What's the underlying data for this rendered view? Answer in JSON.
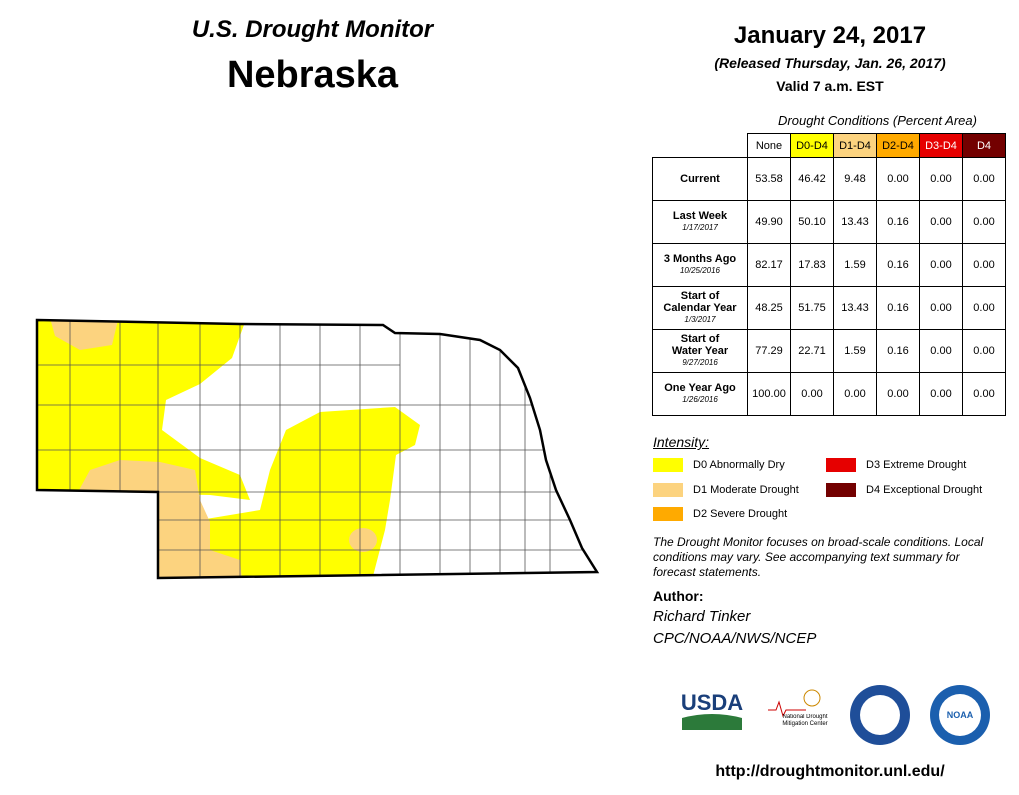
{
  "header": {
    "title": "U.S. Drought Monitor",
    "state": "Nebraska",
    "date": "January 24, 2017",
    "released": "(Released Thursday, Jan. 26, 2017)",
    "valid": "Valid 7 a.m. EST"
  },
  "table": {
    "caption": "Drought Conditions (Percent Area)",
    "columns": [
      {
        "label": "None",
        "color": "#ffffff",
        "text": "#000000"
      },
      {
        "label": "D0-D4",
        "color": "#ffff00",
        "text": "#000000"
      },
      {
        "label": "D1-D4",
        "color": "#fcd37f",
        "text": "#000000"
      },
      {
        "label": "D2-D4",
        "color": "#ffaa00",
        "text": "#000000"
      },
      {
        "label": "D3-D4",
        "color": "#e60000",
        "text": "#ffffff"
      },
      {
        "label": "D4",
        "color": "#730000",
        "text": "#ffffff"
      }
    ],
    "rows": [
      {
        "label": [
          "Current"
        ],
        "values": [
          "53.58",
          "46.42",
          "9.48",
          "0.00",
          "0.00",
          "0.00"
        ]
      },
      {
        "label": [
          "Last Week"
        ],
        "date": "1/17/2017",
        "values": [
          "49.90",
          "50.10",
          "13.43",
          "0.16",
          "0.00",
          "0.00"
        ]
      },
      {
        "label": [
          "3 Months Ago"
        ],
        "date": "10/25/2016",
        "values": [
          "82.17",
          "17.83",
          "1.59",
          "0.16",
          "0.00",
          "0.00"
        ]
      },
      {
        "label": [
          "Start of",
          "Calendar Year"
        ],
        "date": "1/3/2017",
        "values": [
          "48.25",
          "51.75",
          "13.43",
          "0.16",
          "0.00",
          "0.00"
        ]
      },
      {
        "label": [
          "Start of",
          "Water Year"
        ],
        "date": "9/27/2016",
        "values": [
          "77.29",
          "22.71",
          "1.59",
          "0.16",
          "0.00",
          "0.00"
        ]
      },
      {
        "label": [
          "One Year Ago"
        ],
        "date": "1/26/2016",
        "values": [
          "100.00",
          "0.00",
          "0.00",
          "0.00",
          "0.00",
          "0.00"
        ]
      }
    ]
  },
  "legend": {
    "title": "Intensity:",
    "items": [
      {
        "label": "D0 Abnormally Dry",
        "color": "#ffff00"
      },
      {
        "label": "D3 Extreme Drought",
        "color": "#e60000"
      },
      {
        "label": "D1 Moderate Drought",
        "color": "#fcd37f"
      },
      {
        "label": "D4 Exceptional Drought",
        "color": "#730000"
      },
      {
        "label": "D2 Severe Drought",
        "color": "#ffaa00"
      }
    ]
  },
  "note": "The Drought Monitor focuses on broad-scale conditions. Local conditions may vary. See accompanying text summary for forecast statements.",
  "author": {
    "label": "Author:",
    "name": "Richard Tinker",
    "org": "CPC/NOAA/NWS/NCEP"
  },
  "logos": {
    "usda": "USDA",
    "ndmc": "National Drought Mitigation Center",
    "noaa": "NOAA"
  },
  "url": "http://droughtmonitor.unl.edu/"
}
